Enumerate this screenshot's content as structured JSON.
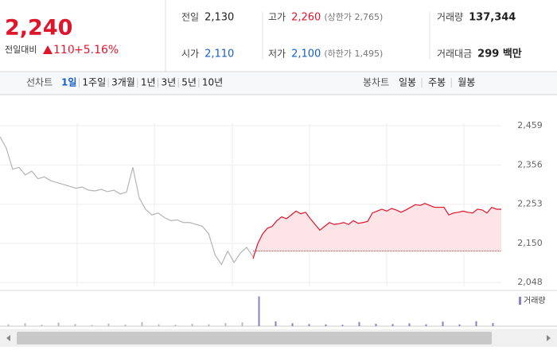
{
  "header": {
    "price": "2,240",
    "change_label": "전일대비",
    "change": "110",
    "change_pct": "+5.16%",
    "stats": [
      {
        "label": "전일",
        "value": "2,130"
      },
      {
        "label": "고가",
        "value": "2,260",
        "note": "(상한가 2,765)"
      },
      {
        "label": "거래량",
        "value": "137,344"
      },
      {
        "label": "시가",
        "value": "2,110"
      },
      {
        "label": "저가",
        "value": "2,100",
        "note": "(하한가 1,495)"
      },
      {
        "label": "거래대금",
        "value": "299 백만"
      }
    ]
  },
  "tabs": {
    "period_label": "선차트",
    "periods": [
      "1일",
      "1주일",
      "3개월",
      "1년",
      "3년",
      "5년",
      "10년"
    ],
    "candle_label": "봉차트",
    "candles": [
      "일봉",
      "주봉",
      "월봉"
    ]
  },
  "chart_data": {
    "type": "line",
    "ylim": [
      2027,
      2528
    ],
    "yticks": [
      {
        "value": 2048,
        "label": "2,048"
      },
      {
        "value": 2150,
        "label": "2,150"
      },
      {
        "value": 2253,
        "label": "2,253"
      },
      {
        "value": 2356,
        "label": "2,356"
      },
      {
        "value": 2459,
        "label": "2,459"
      }
    ],
    "reference": 2130,
    "series": [
      {
        "color": "#b4b4b4",
        "values": [
          2430,
          2400,
          2345,
          2350,
          2330,
          2340,
          2320,
          2325,
          2315,
          2310,
          2305,
          2300,
          2295,
          2298,
          2290,
          2288,
          2292,
          2286,
          2290,
          2280,
          2285,
          2350,
          2270,
          2240,
          2225,
          2230,
          2218,
          2210,
          2212,
          2205,
          2205,
          2200,
          2195,
          2175,
          2120,
          2095,
          2130,
          2100,
          2125,
          2140,
          2115
        ]
      },
      {
        "color": "#e0142b",
        "fill": "#fde4e6",
        "values": [
          2110,
          2150,
          2175,
          2190,
          2195,
          2210,
          2220,
          2215,
          2225,
          2235,
          2228,
          2232,
          2215,
          2200,
          2185,
          2195,
          2205,
          2200,
          2202,
          2205,
          2200,
          2210,
          2203,
          2205,
          2208,
          2230,
          2235,
          2240,
          2235,
          2242,
          2238,
          2232,
          2238,
          2245,
          2252,
          2250,
          2255,
          2250,
          2245,
          2245,
          2245,
          2225,
          2230,
          2232,
          2235,
          2232,
          2230,
          2240,
          2238,
          2230,
          2245,
          2240,
          2240
        ]
      }
    ],
    "volume": {
      "name": "거래량",
      "color": "#8a7fc8",
      "ylim": [
        0,
        28000
      ],
      "values": [
        1500,
        2500,
        1200,
        3000,
        1800,
        1000,
        2200,
        1400,
        3500,
        1600,
        1200,
        2000,
        1500,
        2600,
        3200,
        25000,
        4000,
        2500,
        1800,
        1500,
        1200,
        3500,
        2000,
        1800,
        2400,
        1600,
        3800,
        1500,
        4200,
        2600
      ]
    }
  }
}
